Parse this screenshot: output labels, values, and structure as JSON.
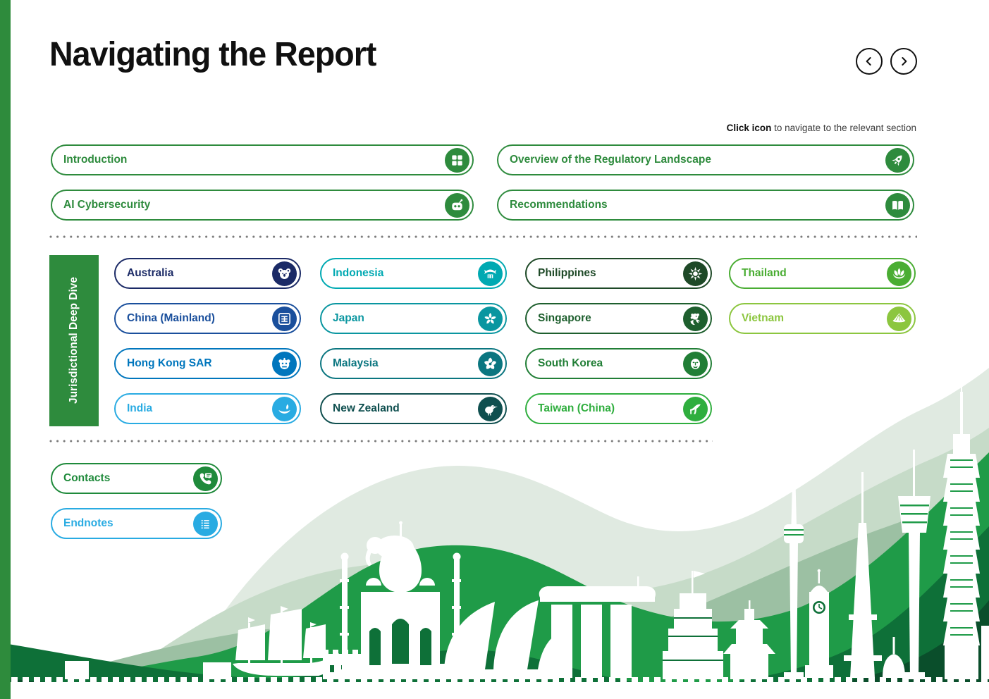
{
  "page": {
    "title": "Navigating the Report",
    "hint_bold": "Click icon",
    "hint_rest": " to navigate to the relevant section",
    "accent_green": "#2e8b3d",
    "left_bar_color": "#2e8b3c"
  },
  "pager": {
    "prev_icon": "chevron-left-icon",
    "next_icon": "chevron-right-icon"
  },
  "sections": {
    "left": [
      {
        "label": "Introduction",
        "icon": "grid-icon",
        "color": "#2e8b3d"
      },
      {
        "label": "AI Cybersecurity",
        "icon": "robot-icon",
        "color": "#2e8b3d"
      }
    ],
    "right": [
      {
        "label": "Overview of the Regulatory Landscape",
        "icon": "rocket-icon",
        "color": "#2e8b3d"
      },
      {
        "label": "Recommendations",
        "icon": "book-icon",
        "color": "#2e8b3d"
      }
    ]
  },
  "jurisdiction": {
    "tab_label": "Jurisdictional Deep Dive",
    "tab_color": "#2e8b3d",
    "columns": [
      [
        {
          "label": "Australia",
          "icon": "koala-icon",
          "color": "#1b2a66"
        },
        {
          "label": "China (Mainland)",
          "icon": "fu-character-icon",
          "color": "#1a4f9c"
        },
        {
          "label": "Hong Kong SAR",
          "icon": "lion-dance-icon",
          "color": "#0076bd"
        },
        {
          "label": "India",
          "icon": "diya-lamp-icon",
          "color": "#29abe2"
        }
      ],
      [
        {
          "label": "Indonesia",
          "icon": "rumah-gadang-icon",
          "color": "#00a9b2"
        },
        {
          "label": "Japan",
          "icon": "sakura-icon",
          "color": "#0a96a0"
        },
        {
          "label": "Malaysia",
          "icon": "hibiscus-icon",
          "color": "#0b7680"
        },
        {
          "label": "New Zealand",
          "icon": "kiwi-icon",
          "color": "#0f4f4f"
        }
      ],
      [
        {
          "label": "Philippines",
          "icon": "sun-icon",
          "color": "#1e4927"
        },
        {
          "label": "Singapore",
          "icon": "merlion-icon",
          "color": "#1e5f2e"
        },
        {
          "label": "South Korea",
          "icon": "mask-icon",
          "color": "#217e36"
        },
        {
          "label": "Taiwan (China)",
          "icon": "high-heel-icon",
          "color": "#2fae3e"
        }
      ],
      [
        {
          "label": "Thailand",
          "icon": "lotus-icon",
          "color": "#4aad33"
        },
        {
          "label": "Vietnam",
          "icon": "conical-hat-icon",
          "color": "#8cc63f"
        }
      ]
    ]
  },
  "footer_links": [
    {
      "label": "Contacts",
      "icon": "phone-icon",
      "color": "#1f8a3b"
    },
    {
      "label": "Endnotes",
      "icon": "list-icon",
      "color": "#29abe2"
    }
  ],
  "backdrop": {
    "palette": [
      "#e0eae1",
      "#c6dbc8",
      "#9cc0a3",
      "#1f9b48",
      "#0e7038",
      "#0a4e2b"
    ],
    "landmarks": [
      "elephant",
      "junk-boat",
      "great-wall",
      "taj-mahal",
      "sydney-opera-house",
      "marina-bay-sands",
      "stepped-tower",
      "pagoda",
      "n-seoul-tower",
      "clock-tower",
      "lattice-tower",
      "stupa",
      "kl-tower",
      "taipei-101"
    ]
  }
}
